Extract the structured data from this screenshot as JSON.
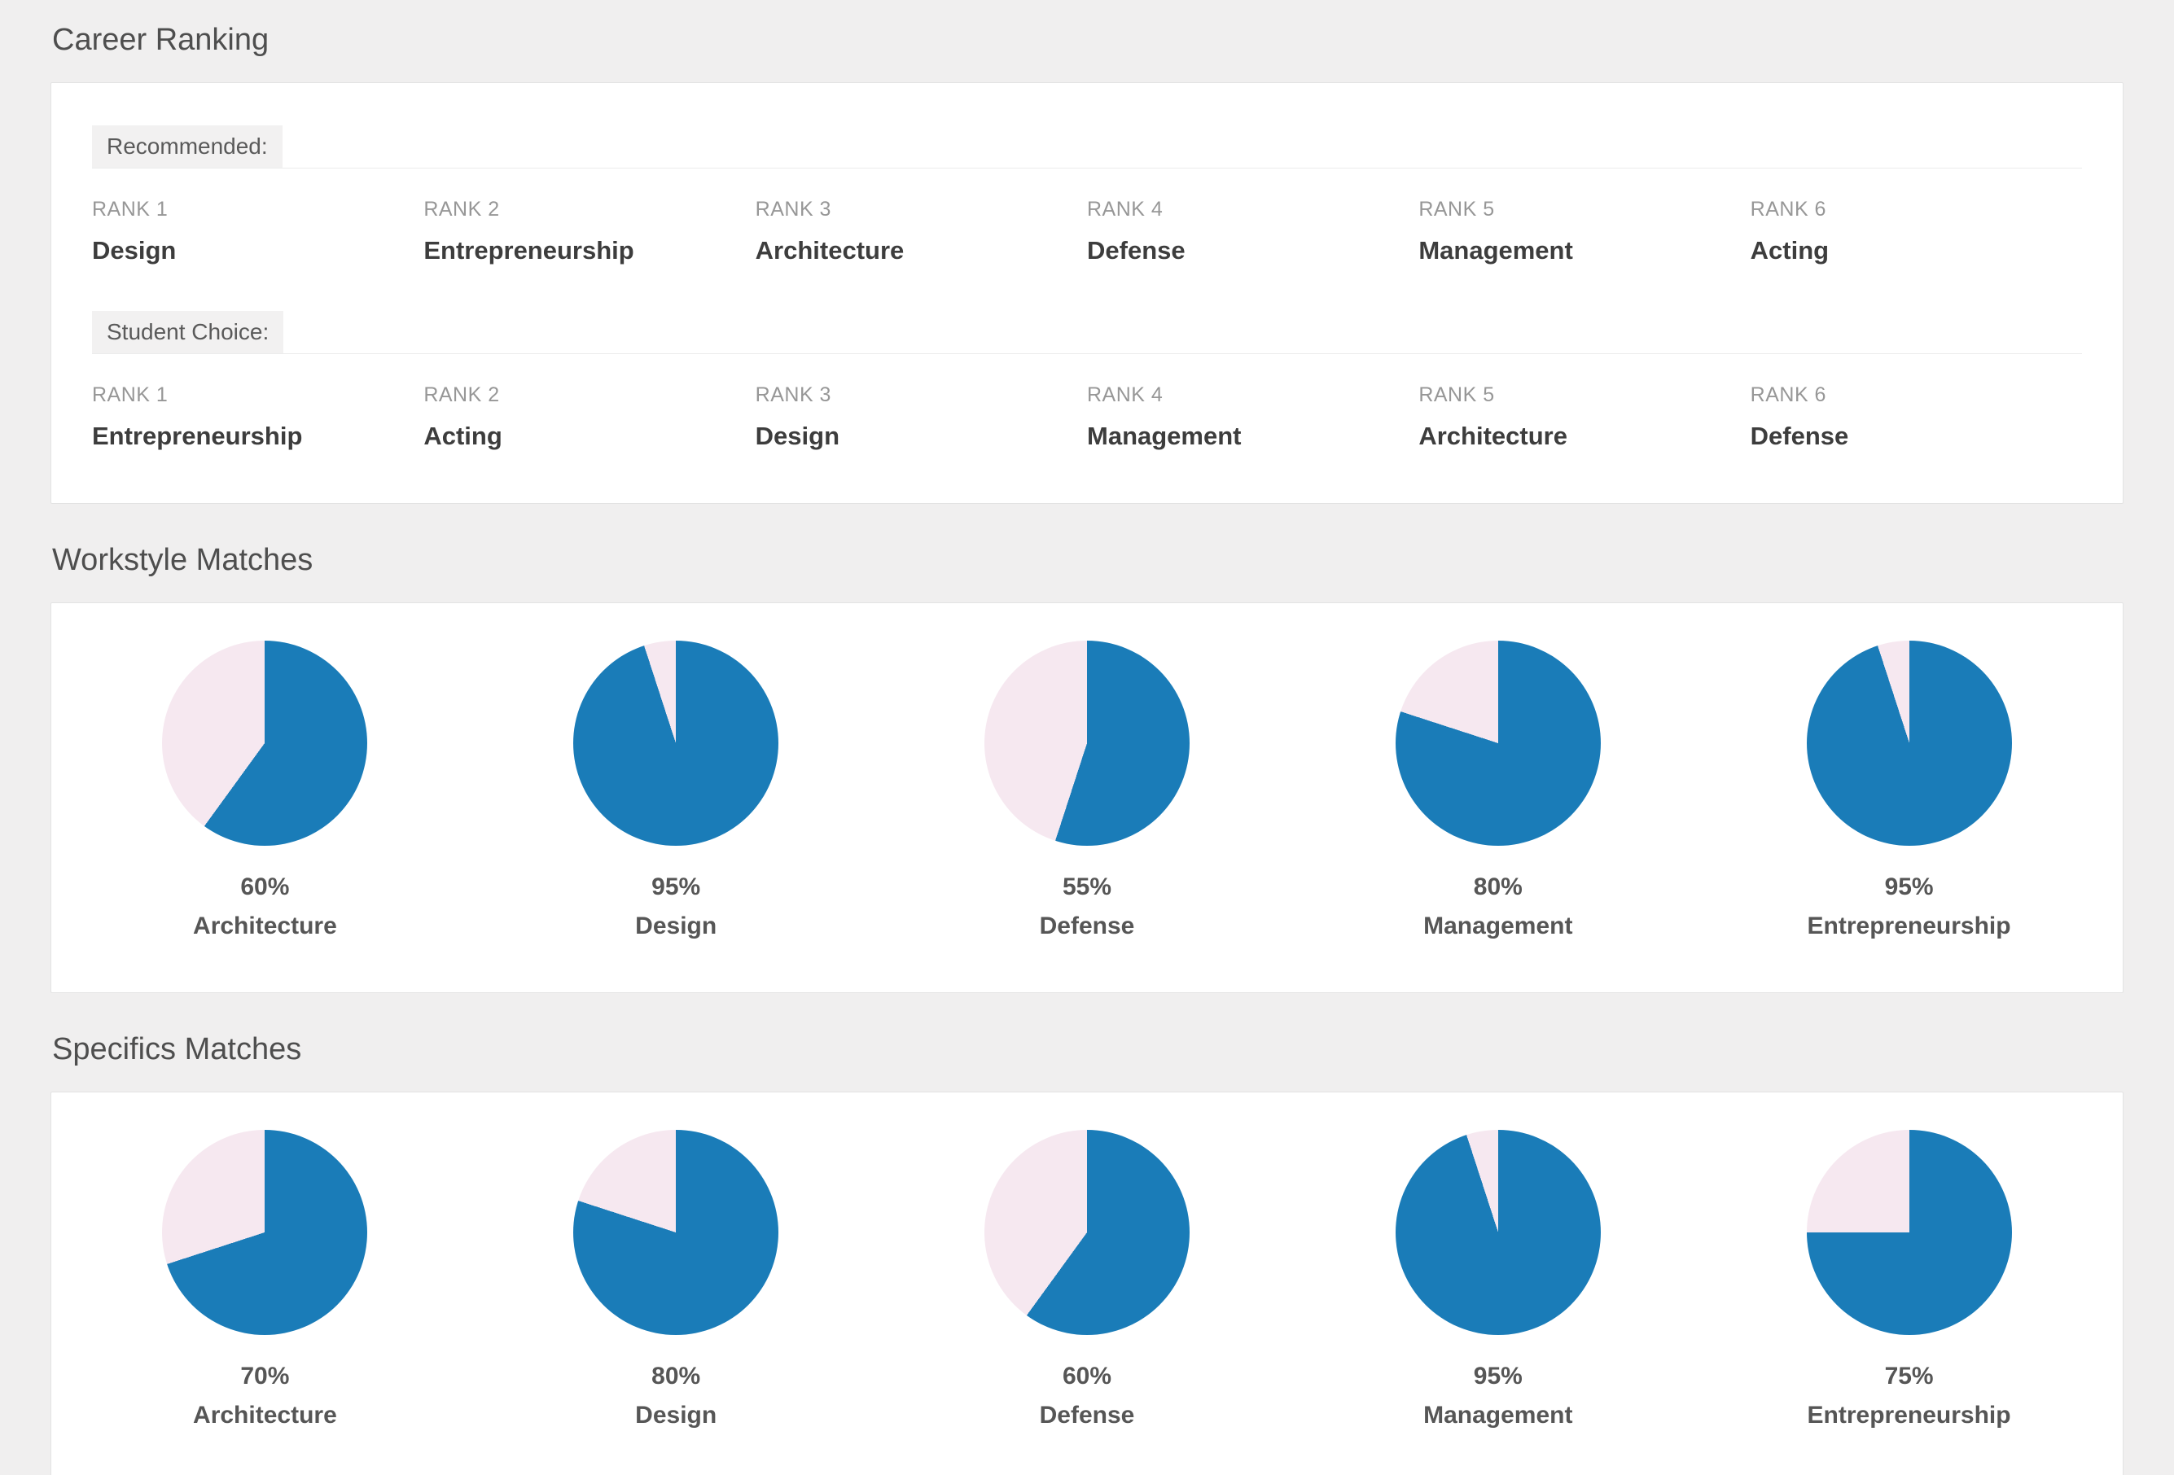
{
  "career_ranking": {
    "title": "Career Ranking",
    "groups": [
      {
        "label": "Recommended:",
        "ranks": [
          {
            "rank": "RANK 1",
            "career": "Design"
          },
          {
            "rank": "RANK 2",
            "career": "Entrepreneurship"
          },
          {
            "rank": "RANK 3",
            "career": "Architecture"
          },
          {
            "rank": "RANK 4",
            "career": "Defense"
          },
          {
            "rank": "RANK 5",
            "career": "Management"
          },
          {
            "rank": "RANK 6",
            "career": "Acting"
          }
        ]
      },
      {
        "label": "Student Choice:",
        "ranks": [
          {
            "rank": "RANK 1",
            "career": "Entrepreneurship"
          },
          {
            "rank": "RANK 2",
            "career": "Acting"
          },
          {
            "rank": "RANK 3",
            "career": "Design"
          },
          {
            "rank": "RANK 4",
            "career": "Management"
          },
          {
            "rank": "RANK 5",
            "career": "Architecture"
          },
          {
            "rank": "RANK 6",
            "career": "Defense"
          }
        ]
      }
    ]
  },
  "chart_data": [
    {
      "type": "pie",
      "title": "Workstyle Matches",
      "unit": "%",
      "colors": {
        "match": "#1a7cb8",
        "remainder": "#f6e8f0"
      },
      "legend": "blue slice = match percentage, pink slice = remainder, slices start at 12 o'clock clockwise",
      "pies": [
        {
          "label": "Architecture",
          "value": 60,
          "value_label": "60%"
        },
        {
          "label": "Design",
          "value": 95,
          "value_label": "95%"
        },
        {
          "label": "Defense",
          "value": 55,
          "value_label": "55%"
        },
        {
          "label": "Management",
          "value": 80,
          "value_label": "80%"
        },
        {
          "label": "Entrepreneurship",
          "value": 95,
          "value_label": "95%"
        }
      ]
    },
    {
      "type": "pie",
      "title": "Specifics Matches",
      "unit": "%",
      "colors": {
        "match": "#1a7cb8",
        "remainder": "#f6e8f0"
      },
      "legend": "blue slice = match percentage, pink slice = remainder, slices start at 12 o'clock clockwise",
      "pies": [
        {
          "label": "Architecture",
          "value": 70,
          "value_label": "70%"
        },
        {
          "label": "Design",
          "value": 80,
          "value_label": "80%"
        },
        {
          "label": "Defense",
          "value": 60,
          "value_label": "60%"
        },
        {
          "label": "Management",
          "value": 95,
          "value_label": "95%"
        },
        {
          "label": "Entrepreneurship",
          "value": 75,
          "value_label": "75%"
        }
      ]
    }
  ]
}
